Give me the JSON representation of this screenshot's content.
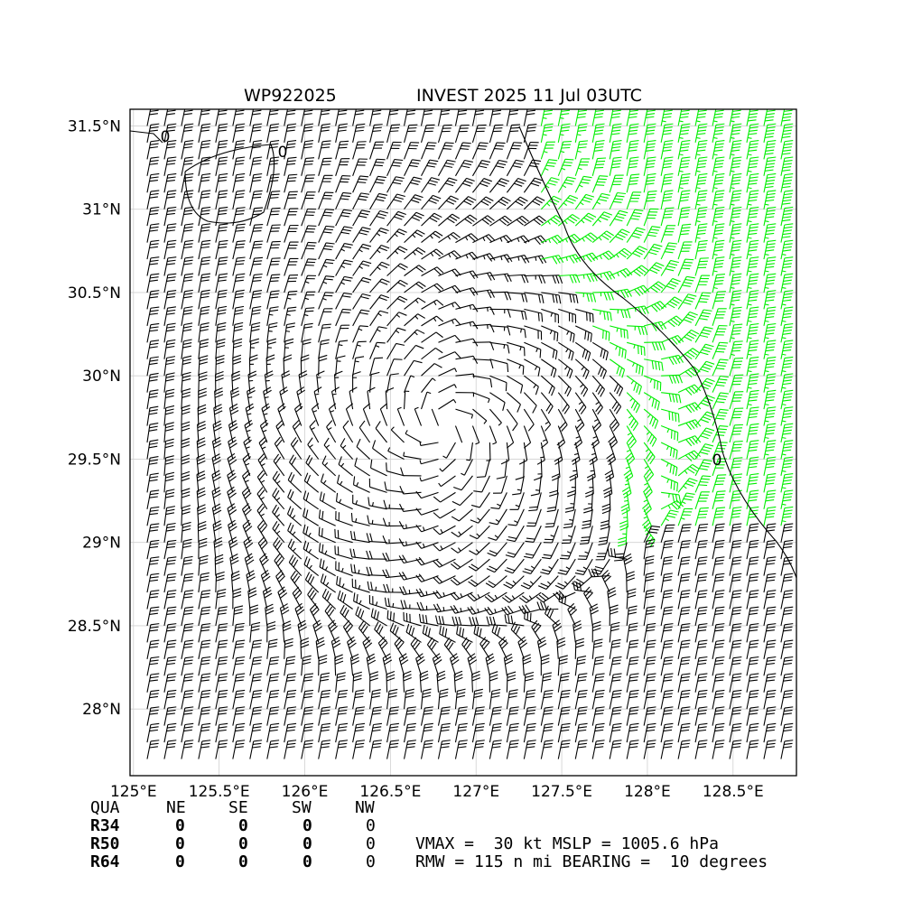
{
  "title_left": "WP922025",
  "title_right": "INVEST 2025 11 Jul 03UTC",
  "chart_data": {
    "type": "wind_barb_map",
    "storm_id": "WP922025",
    "title": "INVEST 2025 11 Jul 03UTC",
    "xlim": [
      124.98,
      128.87
    ],
    "ylim": [
      27.6,
      31.6
    ],
    "x_ticks": [
      {
        "value": 125.0,
        "label": "125°E"
      },
      {
        "value": 125.5,
        "label": "125.5°E"
      },
      {
        "value": 126.0,
        "label": "126°E"
      },
      {
        "value": 126.5,
        "label": "126.5°E"
      },
      {
        "value": 127.0,
        "label": "127°E"
      },
      {
        "value": 127.5,
        "label": "127.5°E"
      },
      {
        "value": 128.0,
        "label": "128°E"
      },
      {
        "value": 128.5,
        "label": "128.5°E"
      }
    ],
    "y_ticks": [
      {
        "value": 28.0,
        "label": "28°N"
      },
      {
        "value": 28.5,
        "label": "28.5°N"
      },
      {
        "value": 29.0,
        "label": "29°N"
      },
      {
        "value": 29.5,
        "label": "29.5°N"
      },
      {
        "value": 30.0,
        "label": "30°N"
      },
      {
        "value": 30.5,
        "label": "30.5°N"
      },
      {
        "value": 31.0,
        "label": "31°N"
      },
      {
        "value": 31.5,
        "label": "31.5°N"
      }
    ],
    "grid": true,
    "center": {
      "lon": 126.8,
      "lat": 29.7
    },
    "barb_spacing_deg": 0.1,
    "barb_colors": {
      "below_34kt": "#000000",
      "above_34kt": "#00ee00"
    },
    "contour_labels": [
      "0",
      "0",
      "0"
    ],
    "radii_table": {
      "header": [
        "QUA",
        "NE",
        "SE",
        "SW",
        "NW"
      ],
      "rows": [
        {
          "label": "R34",
          "values": [
            "0",
            "0",
            "0",
            "0"
          ]
        },
        {
          "label": "R50",
          "values": [
            "0",
            "0",
            "0",
            "0"
          ]
        },
        {
          "label": "R64",
          "values": [
            "0",
            "0",
            "0",
            "0"
          ]
        }
      ]
    },
    "vmax_kt": 30,
    "mslp_hpa": 1005.6,
    "rmw_nmi": 115,
    "bearing_deg": 10
  },
  "summary": {
    "line1": "VMAX =  30 kt MSLP = 1005.6 hPa",
    "line2": "RMW = 115 n mi BEARING =  10 degrees"
  }
}
